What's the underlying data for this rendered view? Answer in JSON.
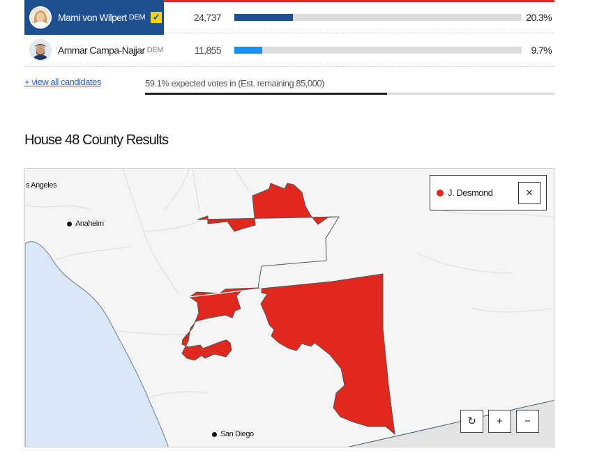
{
  "candidates": [
    {
      "name": "Marni von Wilpert",
      "party": "DEM",
      "votes": "24,737",
      "pct": "20.3%",
      "share": 0.203,
      "winner": true,
      "bar_color": "#1d4f91"
    },
    {
      "name": "Ammar Campa-Najjar",
      "party": "DEM",
      "votes": "11,855",
      "pct": "9.7%",
      "share": 0.097,
      "winner": false,
      "bar_color": "#1e8fe6"
    }
  ],
  "view_all_label": "+ view all candidates",
  "expected": {
    "text": "59.1% expected votes in (Est. remaining 85,000)",
    "fraction": 0.591
  },
  "section_title": "House 48 County Results",
  "map": {
    "cities": {
      "los_angeles": "s Angeles",
      "anaheim": "Anaheim",
      "san_diego": "San Diego"
    },
    "legend": {
      "label": "J. Desmond",
      "color": "#e0281f",
      "close_icon": "close-icon"
    },
    "controls": {
      "reset_icon": "refresh-icon",
      "zoom_in": "+",
      "zoom_out": "−"
    },
    "colors": {
      "ocean": "#d8e8f7",
      "land": "#f5f5f5",
      "district": "#e0281f",
      "mexico": "#e3e3e3"
    }
  }
}
